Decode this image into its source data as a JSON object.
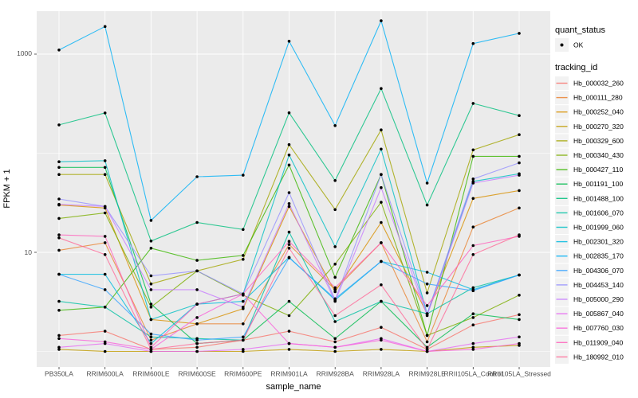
{
  "figure": {
    "background": "#FFFFFF",
    "panel_background": "#EBEBEB",
    "gridline_color": "#FFFFFF",
    "legend_key_background": "#F2F2F2",
    "point_color": "#000000",
    "axis_tick_color": "#333333",
    "axis_text_color": "#4D4D4D"
  },
  "axes": {
    "x_title": "sample_name",
    "y_title": "FPKM + 1",
    "y_ticks": [
      {
        "label": "1000",
        "value": 1000
      },
      {
        "label": "10",
        "value": 10
      }
    ],
    "y_major_gridlines": [
      10,
      1000
    ],
    "y_minor_gridlines": [
      1,
      100
    ]
  },
  "legend": {
    "quant_status": {
      "title": "quant_status",
      "ok_label": "OK"
    },
    "tracking_id": {
      "title": "tracking_id"
    }
  },
  "chart_data": {
    "type": "line",
    "title": "",
    "xlabel": "sample_name",
    "ylabel": "FPKM + 1",
    "y_scale": "log10",
    "ylim": [
      0.7,
      2700
    ],
    "legend_position": "right",
    "grid": true,
    "categories": [
      "PB350LA",
      "RRIM600LA",
      "RRIM600LE",
      "RRIM600SE",
      "RRIM600PE",
      "RRIM901LA",
      "RRIM928BA",
      "RRIM928LA",
      "RRIM928LE",
      "RRII105LA_Control",
      "RRII105LA_Stressed"
    ],
    "series": [
      {
        "name": "Hb_000032_260",
        "color": "#F8766D",
        "quant_status": "OK",
        "values": [
          1.45,
          1.6,
          1.05,
          1.1,
          1.3,
          1.6,
          1.25,
          1.75,
          1.05,
          1.85,
          2.35
        ]
      },
      {
        "name": "Hb_000111_280",
        "color": "#EA8331",
        "quant_status": "OK",
        "values": [
          10.5,
          12.5,
          1.3,
          1.9,
          1.9,
          12,
          4.2,
          12.5,
          1.25,
          18,
          28
        ]
      },
      {
        "name": "Hb_000252_040",
        "color": "#D89000",
        "quant_status": "OK",
        "values": [
          30,
          28,
          2.1,
          1.9,
          2.7,
          29,
          4.0,
          20,
          2.4,
          35,
          42
        ]
      },
      {
        "name": "Hb_000270_320",
        "color": "#C09B00",
        "quant_status": "OK",
        "values": [
          1.05,
          1.0,
          1.0,
          1.0,
          1.0,
          1.05,
          1.0,
          1.05,
          1.0,
          1.1,
          1.15
        ]
      },
      {
        "name": "Hb_000329_600",
        "color": "#A3A500",
        "quant_status": "OK",
        "values": [
          61,
          61,
          4.8,
          6.5,
          8.5,
          122,
          27,
          172,
          3.9,
          108,
          154
        ]
      },
      {
        "name": "Hb_000340_430",
        "color": "#7CAE00",
        "quant_status": "OK",
        "values": [
          22,
          25,
          2.8,
          6.5,
          3.7,
          2.3,
          7.6,
          32,
          1.45,
          2.2,
          3.7
        ]
      },
      {
        "name": "Hb_000427_110",
        "color": "#39B600",
        "quant_status": "OK",
        "values": [
          2.6,
          2.8,
          11,
          8.3,
          9.3,
          76,
          5.6,
          61,
          1.45,
          93,
          93
        ]
      },
      {
        "name": "Hb_001191_100",
        "color": "#00BB4E",
        "quant_status": "OK",
        "values": [
          72,
          72,
          3.0,
          1.2,
          1.3,
          3.2,
          1.35,
          3.2,
          1.1,
          2.4,
          2.1
        ]
      },
      {
        "name": "Hb_001488_100",
        "color": "#00BF7D",
        "quant_status": "OK",
        "values": [
          193,
          255,
          13,
          20,
          17,
          256,
          53,
          450,
          30,
          318,
          240
        ]
      },
      {
        "name": "Hb_001606_070",
        "color": "#00C1A3",
        "quant_status": "OK",
        "values": [
          3.2,
          2.8,
          1.4,
          1.35,
          1.3,
          16,
          2.0,
          3.2,
          2.4,
          4.4,
          5.9
        ]
      },
      {
        "name": "Hb_001999_060",
        "color": "#00BFC4",
        "quant_status": "OK",
        "values": [
          82,
          84,
          2.1,
          3.0,
          3.8,
          96,
          11.4,
          110,
          2.4,
          52,
          62
        ]
      },
      {
        "name": "Hb_002301_320",
        "color": "#00BAE0",
        "quant_status": "OK",
        "values": [
          6.0,
          6.0,
          1.2,
          3.0,
          3.2,
          8.9,
          3.3,
          8.1,
          6.3,
          4.2,
          5.9
        ]
      },
      {
        "name": "Hb_002835_170",
        "color": "#00B0F6",
        "quant_status": "OK",
        "values": [
          1100,
          1900,
          21,
          58,
          60,
          1350,
          190,
          2170,
          50,
          1280,
          1620
        ]
      },
      {
        "name": "Hb_004306_070",
        "color": "#35A2FF",
        "quant_status": "OK",
        "values": [
          6.0,
          4.2,
          1.5,
          1.3,
          1.4,
          8.8,
          3.4,
          8.1,
          4.8,
          4.1,
          5.9
        ]
      },
      {
        "name": "Hb_004453_140",
        "color": "#9590FF",
        "quant_status": "OK",
        "values": [
          34.5,
          29,
          5.8,
          6.5,
          3.8,
          40,
          3.3,
          61,
          2.4,
          55,
          80
        ]
      },
      {
        "name": "Hb_005000_290",
        "color": "#C77CFF",
        "quant_status": "OK",
        "values": [
          30.5,
          29,
          4.2,
          4.2,
          2.8,
          31,
          3.2,
          45,
          2.3,
          50,
          60
        ]
      },
      {
        "name": "Hb_005867_040",
        "color": "#E76BF3",
        "quant_status": "OK",
        "values": [
          1.1,
          1.2,
          1.0,
          1.0,
          1.05,
          1.2,
          1.1,
          1.35,
          1.0,
          1.2,
          1.4
        ]
      },
      {
        "name": "Hb_007760_030",
        "color": "#FA62DB",
        "quant_status": "OK",
        "values": [
          1.35,
          1.25,
          1.05,
          2.2,
          3.8,
          1.2,
          1.1,
          1.3,
          1.0,
          1.05,
          1.2
        ]
      },
      {
        "name": "Hb_011909_040",
        "color": "#FF62BC",
        "quant_status": "OK",
        "values": [
          15,
          14.5,
          1.1,
          3.0,
          3.8,
          12.9,
          4.4,
          12.5,
          2.9,
          11.7,
          14.5
        ]
      },
      {
        "name": "Hb_180992_010",
        "color": "#FF6A98",
        "quant_status": "OK",
        "values": [
          14,
          9.5,
          1.05,
          1.2,
          1.3,
          11,
          2.3,
          4.7,
          1.05,
          9.5,
          15
        ]
      }
    ]
  }
}
